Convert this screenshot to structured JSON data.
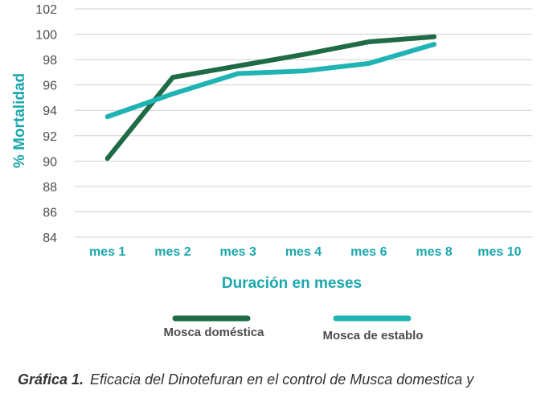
{
  "chart_data": {
    "type": "line",
    "categories": [
      "mes 1",
      "mes 2",
      "mes 3",
      "mes 4",
      "mes 6",
      "mes 8",
      "mes 10"
    ],
    "series": [
      {
        "name": "Mosca doméstica",
        "color": "#1e6b45",
        "values": [
          90.2,
          96.6,
          97.5,
          98.4,
          99.4,
          99.8,
          null
        ]
      },
      {
        "name": "Mosca de establo",
        "color": "#1fb3b3",
        "values": [
          93.5,
          95.3,
          96.9,
          97.1,
          97.7,
          99.2,
          null
        ]
      }
    ],
    "xlabel": "Duración en meses",
    "ylabel": "% Mortalidad",
    "ylim": [
      84,
      102
    ],
    "yticks": [
      84,
      86,
      88,
      90,
      92,
      94,
      96,
      98,
      100,
      102
    ],
    "grid": true,
    "legend_position": "bottom"
  },
  "caption": {
    "label": "Gráfica 1.",
    "text": "Eficacia del Dinotefuran en el control de Musca domestica y"
  }
}
